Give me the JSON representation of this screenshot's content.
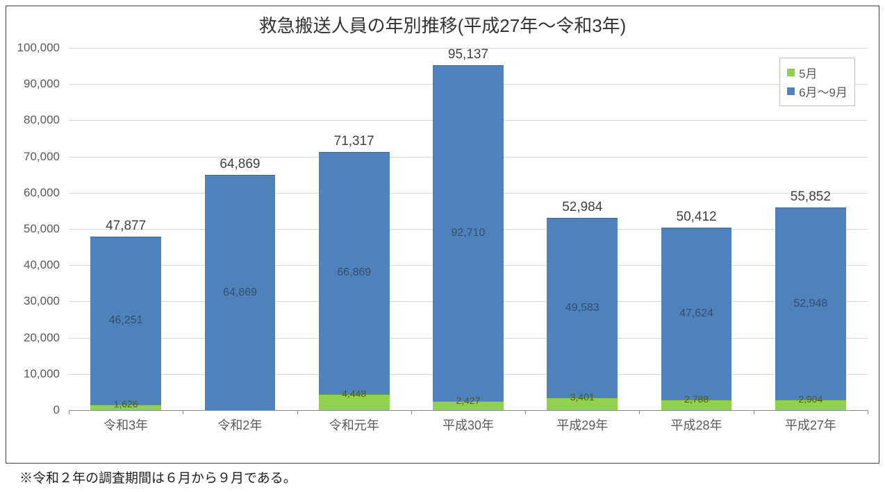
{
  "chart": {
    "type": "stacked-bar",
    "title": "救急搬送人員の年別推移(平成27年～令和3年)",
    "title_fontsize": 26,
    "title_color": "#333333",
    "background_color": "#ffffff",
    "border_color": "#404040",
    "grid_color": "#d9d9d9",
    "axis_color": "#888888",
    "label_color": "#595959",
    "ylim": [
      0,
      100000
    ],
    "ytick_step": 10000,
    "ytick_labels": [
      "0",
      "10,000",
      "20,000",
      "30,000",
      "40,000",
      "50,000",
      "60,000",
      "70,000",
      "80,000",
      "90,000",
      "100,000"
    ],
    "ytick_fontsize": 17,
    "xlabel_fontsize": 18,
    "bar_width_ratio": 0.62,
    "categories": [
      "令和3年",
      "令和2年",
      "令和元年",
      "平成30年",
      "平成29年",
      "平成28年",
      "平成27年"
    ],
    "series": [
      {
        "name": "5月",
        "color": "#92d050",
        "border": "#6aa030",
        "values": [
          1626,
          0,
          4448,
          2427,
          3401,
          2788,
          2904
        ],
        "labels": [
          "1,626",
          null,
          "4,448",
          "2,427",
          "3,401",
          "2,788",
          "2,904"
        ]
      },
      {
        "name": "6月～9月",
        "color": "#4f81bd",
        "border": "#3b6696",
        "values": [
          46251,
          64869,
          66869,
          92710,
          49583,
          47624,
          52948
        ],
        "labels": [
          "46,251",
          "64,869",
          "66,869",
          "92,710",
          "49,583",
          "47,624",
          "52,948"
        ]
      }
    ],
    "totals": [
      47877,
      64869,
      71317,
      95137,
      52984,
      50412,
      55852
    ],
    "total_labels": [
      "47,877",
      "64,869",
      "71,317",
      "95,137",
      "52,984",
      "50,412",
      "55,852"
    ],
    "total_label_fontsize": 19,
    "seg_label_fontsize": 16,
    "may_label_fontsize": 14,
    "legend": {
      "position": "top-right",
      "border_color": "#bfbfbf",
      "fontsize": 17
    }
  },
  "footnote": "※令和２年の調査期間は６月から９月である。"
}
